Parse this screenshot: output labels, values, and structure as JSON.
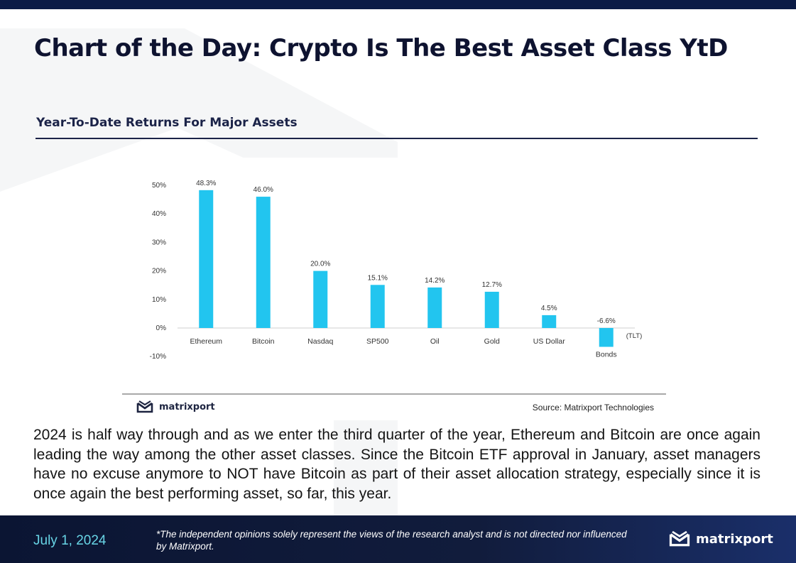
{
  "header": {
    "title": "Chart of the Day: Crypto Is The Best Asset Class YtD"
  },
  "chart_section": {
    "subtitle": "Year-To-Date Returns For Major Assets",
    "brand": "matrixport",
    "source": "Source: Matrixport Technologies"
  },
  "chart_data": {
    "type": "bar",
    "title": "",
    "xlabel": "",
    "ylabel": "",
    "categories": [
      "Ethereum",
      "Bitcoin",
      "Nasdaq",
      "SP500",
      "Oil",
      "Gold",
      "US Dollar",
      "Bonds"
    ],
    "values": [
      48.3,
      46.0,
      20.0,
      15.1,
      14.2,
      12.7,
      4.5,
      -6.6
    ],
    "value_labels": [
      "48.3%",
      "46.0%",
      "20.0%",
      "15.1%",
      "14.2%",
      "12.7%",
      "4.5%",
      "-6.6%"
    ],
    "annotation": "(TLT)",
    "ylim": [
      -10,
      50
    ],
    "yticks": [
      50,
      40,
      30,
      20,
      10,
      0,
      -10
    ],
    "ytick_labels": [
      "50%",
      "40%",
      "30%",
      "20%",
      "10%",
      "0%",
      "-10%"
    ],
    "bar_color": "#22c5ef",
    "grid": false
  },
  "body": {
    "text": "2024 is half way through and as we enter the third quarter of the year, Ethereum and Bitcoin are once again leading the way among the other asset classes. Since the Bitcoin ETF approval in January, asset managers have no excuse anymore to NOT have Bitcoin as part of their asset allocation strategy, especially since it is once again the best performing asset, so far, this year."
  },
  "footer": {
    "date": "July 1, 2024",
    "disclaimer": "*The independent opinions solely represent the views of the research analyst and is not directed nor influenced by Matrixport.",
    "brand": "matrixport"
  },
  "colors": {
    "navy": "#0b1b46",
    "accent_cyan": "#68d5e6",
    "bar": "#22c5ef"
  }
}
